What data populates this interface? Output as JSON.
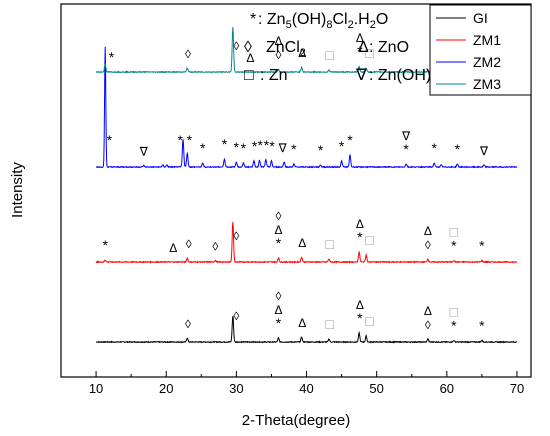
{
  "chart_data": {
    "type": "line",
    "xlabel": "2-Theta(degree)",
    "ylabel": "Intensity",
    "xlim": [
      5,
      72
    ],
    "x_ticks": [
      10,
      20,
      30,
      40,
      50,
      60,
      70
    ],
    "y_ticks_shown": false,
    "grid": false,
    "legend_placement": "top-right",
    "phase_key": [
      {
        "symbol": "*",
        "formula": "Zn5(OH)8Cl2.H2O"
      },
      {
        "symbol": "◊",
        "formula": "ZnCl2"
      },
      {
        "symbol": "Δ",
        "formula": "ZnO"
      },
      {
        "symbol": "□",
        "formula": "Zn"
      },
      {
        "symbol": "∇",
        "formula": "Zn(OH)2"
      }
    ],
    "series": [
      {
        "name": "GI",
        "color": "#000000",
        "offset": 0,
        "peaks": [
          [
            23.0,
            4
          ],
          [
            29.5,
            26
          ],
          [
            36.0,
            4
          ],
          [
            39.3,
            5
          ],
          [
            43.2,
            3
          ],
          [
            47.5,
            9
          ],
          [
            48.5,
            6
          ],
          [
            57.3,
            3
          ],
          [
            61.0,
            1.5
          ],
          [
            65.0,
            1.5
          ]
        ],
        "markers": [
          {
            "x": 23.1,
            "sym": "◊"
          },
          {
            "x": 30.0,
            "sym": "◊"
          },
          {
            "x": 36.0,
            "sym": "*",
            "stack": [
              "Δ",
              "◊"
            ]
          },
          {
            "x": 39.4,
            "sym": "Δ"
          },
          {
            "x": 43.3,
            "sym": "□"
          },
          {
            "x": 47.6,
            "sym": "*",
            "stack": [
              "Δ"
            ]
          },
          {
            "x": 49.0,
            "sym": "□"
          },
          {
            "x": 57.3,
            "sym": "◊",
            "stack": [
              "Δ"
            ]
          },
          {
            "x": 61.0,
            "sym": "*",
            "stack": [
              "□"
            ]
          },
          {
            "x": 65.0,
            "sym": "*"
          }
        ]
      },
      {
        "name": "ZM1",
        "color": "#ff0000",
        "offset": 80,
        "peaks": [
          [
            11.3,
            2
          ],
          [
            23.0,
            4
          ],
          [
            27.0,
            1.5
          ],
          [
            29.5,
            40
          ],
          [
            36.0,
            4
          ],
          [
            39.3,
            5
          ],
          [
            43.2,
            3
          ],
          [
            47.5,
            10
          ],
          [
            48.5,
            7
          ],
          [
            57.3,
            3
          ],
          [
            61.0,
            1.5
          ],
          [
            65.0,
            1.5
          ]
        ],
        "markers": [
          {
            "x": 11.3,
            "sym": "*"
          },
          {
            "x": 21.0,
            "sym": "Δ"
          },
          {
            "x": 23.2,
            "sym": "◊"
          },
          {
            "x": 27.0,
            "sym": "◊"
          },
          {
            "x": 30.0,
            "sym": "◊"
          },
          {
            "x": 36.0,
            "sym": "*",
            "stack": [
              "Δ",
              "◊"
            ]
          },
          {
            "x": 39.4,
            "sym": "Δ"
          },
          {
            "x": 43.3,
            "sym": "□"
          },
          {
            "x": 47.6,
            "sym": "*",
            "stack": [
              "Δ"
            ]
          },
          {
            "x": 49.0,
            "sym": "□"
          },
          {
            "x": 57.3,
            "sym": "◊",
            "stack": [
              "Δ"
            ]
          },
          {
            "x": 61.0,
            "sym": "*",
            "stack": [
              "□"
            ]
          },
          {
            "x": 65.0,
            "sym": "*"
          }
        ]
      },
      {
        "name": "ZM2",
        "color": "#0000ff",
        "offset": 175,
        "peaks": [
          [
            11.3,
            120
          ],
          [
            16.8,
            1.5
          ],
          [
            19.5,
            2
          ],
          [
            20.1,
            2
          ],
          [
            22.4,
            28
          ],
          [
            23.0,
            14
          ],
          [
            25.2,
            4
          ],
          [
            28.3,
            8
          ],
          [
            30.0,
            5
          ],
          [
            31.0,
            4
          ],
          [
            32.5,
            6
          ],
          [
            33.3,
            7
          ],
          [
            34.2,
            7
          ],
          [
            35.0,
            6
          ],
          [
            36.8,
            5
          ],
          [
            38.2,
            3
          ],
          [
            42.0,
            2
          ],
          [
            45.0,
            6
          ],
          [
            46.2,
            12
          ],
          [
            54.2,
            3
          ],
          [
            58.2,
            4
          ],
          [
            59.2,
            2
          ],
          [
            61.5,
            3
          ],
          [
            65.3,
            2
          ]
        ],
        "markers": [
          {
            "x": 11.9,
            "sym": "*"
          },
          {
            "x": 16.8,
            "sym": "∇"
          },
          {
            "x": 22.0,
            "sym": "*"
          },
          {
            "x": 23.3,
            "sym": "*"
          },
          {
            "x": 25.2,
            "sym": "*"
          },
          {
            "x": 28.3,
            "sym": "*"
          },
          {
            "x": 30.0,
            "sym": "*"
          },
          {
            "x": 31.0,
            "sym": "*"
          },
          {
            "x": 32.6,
            "sym": "*"
          },
          {
            "x": 33.4,
            "sym": "*"
          },
          {
            "x": 34.3,
            "sym": "*"
          },
          {
            "x": 35.1,
            "sym": "*"
          },
          {
            "x": 36.6,
            "sym": "∇"
          },
          {
            "x": 38.2,
            "sym": "*"
          },
          {
            "x": 42.0,
            "sym": "*"
          },
          {
            "x": 45.0,
            "sym": "*"
          },
          {
            "x": 46.2,
            "sym": "*"
          },
          {
            "x": 54.2,
            "sym": "*",
            "stack": [
              "∇"
            ]
          },
          {
            "x": 58.2,
            "sym": "*"
          },
          {
            "x": 61.5,
            "sym": "*"
          },
          {
            "x": 65.3,
            "sym": "∇"
          }
        ]
      },
      {
        "name": "ZM3",
        "color": "#008b8b",
        "offset": 270,
        "peaks": [
          [
            11.3,
            8
          ],
          [
            23.0,
            4
          ],
          [
            29.5,
            45
          ],
          [
            36.0,
            3
          ],
          [
            39.3,
            5
          ],
          [
            43.2,
            2
          ],
          [
            47.5,
            6
          ],
          [
            48.5,
            4
          ],
          [
            57.3,
            1.5
          ],
          [
            61.0,
            1.5
          ]
        ],
        "markers": [
          {
            "x": 12.2,
            "sym": "*"
          },
          {
            "x": 23.1,
            "sym": "◊"
          },
          {
            "x": 30.0,
            "sym": "◊"
          },
          {
            "x": 32.0,
            "sym": "Δ"
          },
          {
            "x": 36.0,
            "sym": "◊",
            "stack": [
              "Δ"
            ]
          },
          {
            "x": 39.4,
            "sym": "Δ"
          },
          {
            "x": 43.3,
            "sym": "□"
          },
          {
            "x": 47.6,
            "sym": "*",
            "stack": [
              "Δ"
            ]
          },
          {
            "x": 49.0,
            "sym": "□"
          }
        ]
      }
    ]
  }
}
